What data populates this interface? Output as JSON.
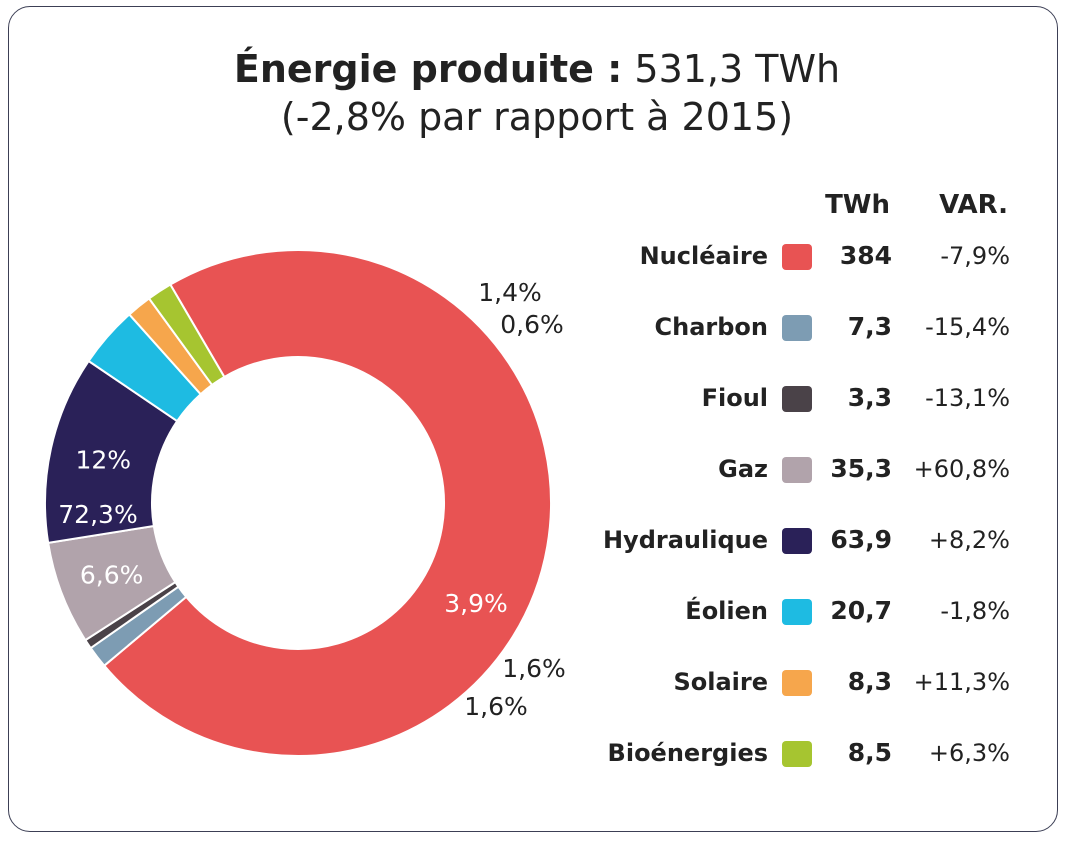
{
  "header": {
    "title_bold": "Énergie produite :",
    "title_value": "531,3 TWh",
    "subtitle": "(-2,8% par rapport à 2015)"
  },
  "legend": {
    "col_twh": "TWh",
    "col_var": "VAR.",
    "rows": [
      {
        "label": "Nucléaire",
        "twh": "384",
        "var": "-7,9%",
        "color": "#e85353"
      },
      {
        "label": "Charbon",
        "twh": "7,3",
        "var": "-15,4%",
        "color": "#7d9cb3"
      },
      {
        "label": "Fioul",
        "twh": "3,3",
        "var": "-13,1%",
        "color": "#4a4248"
      },
      {
        "label": "Gaz",
        "twh": "35,3",
        "var": "+60,8%",
        "color": "#b1a3ab"
      },
      {
        "label": "Hydraulique",
        "twh": "63,9",
        "var": "+8,2%",
        "color": "#2a2158"
      },
      {
        "label": "Éolien",
        "twh": "20,7",
        "var": "-1,8%",
        "color": "#1ebbe2"
      },
      {
        "label": "Solaire",
        "twh": "8,3",
        "var": "+11,3%",
        "color": "#f6a64c"
      },
      {
        "label": "Bioénergies",
        "twh": "8,5",
        "var": "+6,3%",
        "color": "#a6c530"
      }
    ]
  },
  "chart_data": {
    "type": "pie",
    "donut": true,
    "title": "Énergie produite : 531,3 TWh",
    "subtitle": "(-2,8% par rapport à 2015)",
    "categories": [
      "Nucléaire",
      "Charbon",
      "Fioul",
      "Gaz",
      "Hydraulique",
      "Éolien",
      "Solaire",
      "Bioénergies"
    ],
    "values": [
      72.3,
      1.4,
      0.6,
      6.6,
      12,
      3.9,
      1.6,
      1.6
    ],
    "labels": [
      "72,3%",
      "1,4%",
      "0,6%",
      "6,6%",
      "12%",
      "3,9%",
      "1,6%",
      "1,6%"
    ],
    "colors": [
      "#e85353",
      "#7d9cb3",
      "#4a4248",
      "#b1a3ab",
      "#2a2158",
      "#1ebbe2",
      "#f6a64c",
      "#a6c530"
    ],
    "label_colors": [
      "#ffffff",
      "#222222",
      "#222222",
      "#ffffff",
      "#ffffff",
      "#ffffff",
      "#222222",
      "#222222"
    ],
    "start_angle_deg": -30.3
  }
}
